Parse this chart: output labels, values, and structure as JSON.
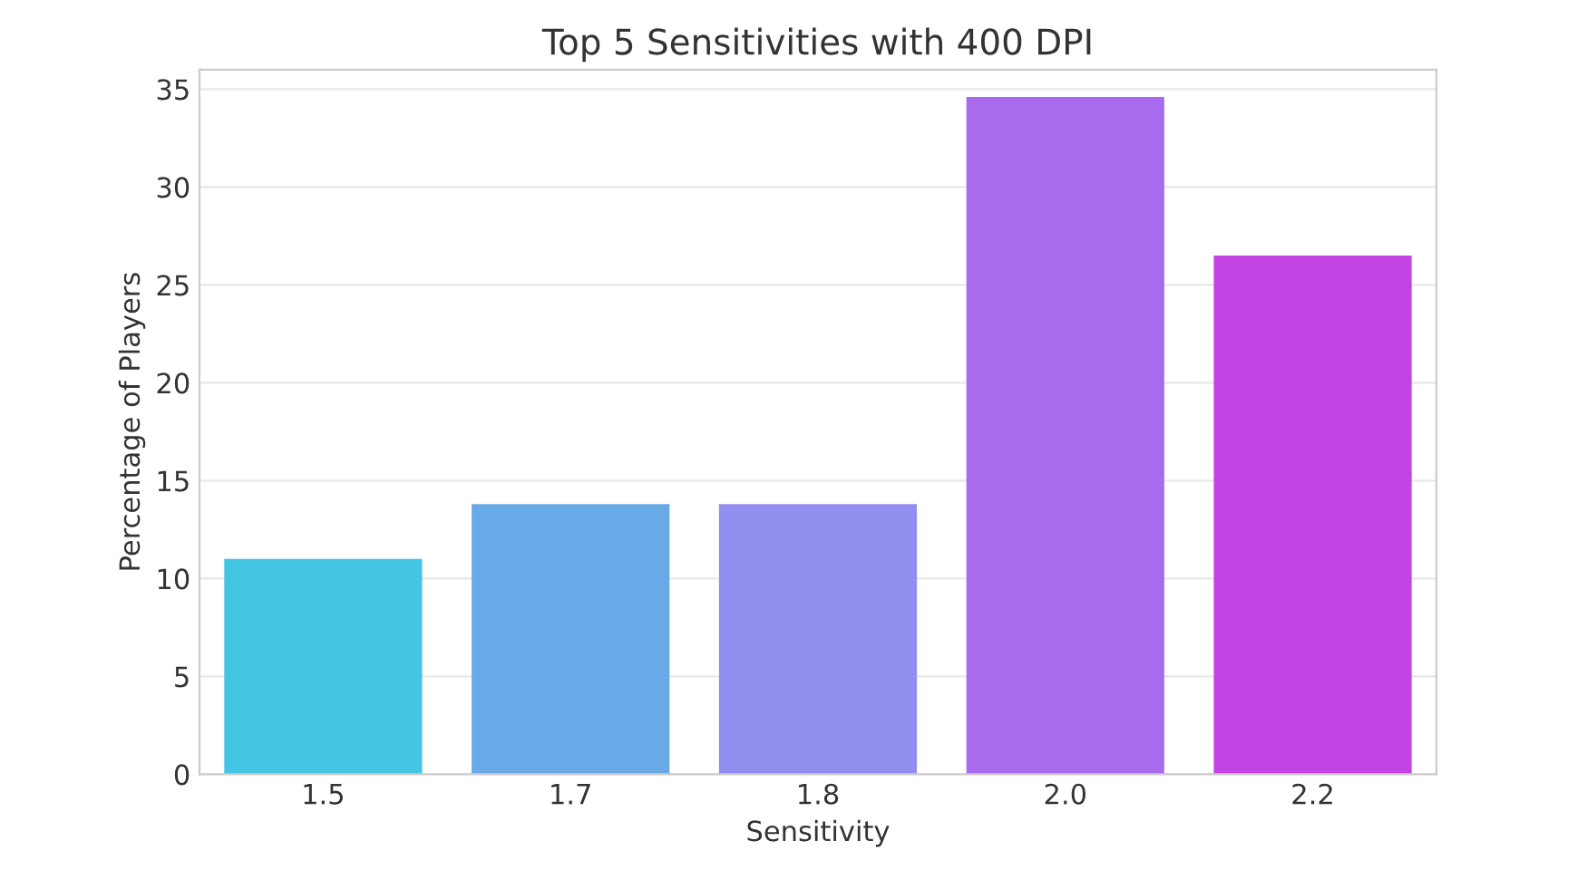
{
  "chart_data": {
    "type": "bar",
    "title": "Top 5 Sensitivities with 400 DPI",
    "xlabel": "Sensitivity",
    "ylabel": "Percentage of Players",
    "categories": [
      "1.5",
      "1.7",
      "1.8",
      "2.0",
      "2.2"
    ],
    "values": [
      11.0,
      13.8,
      13.8,
      34.6,
      26.5
    ],
    "colors": [
      "#42c6e3",
      "#68aae8",
      "#928ef0",
      "#a96bee",
      "#c244e3"
    ],
    "ylim": [
      0,
      36
    ],
    "yticks": [
      0,
      5,
      10,
      15,
      20,
      25,
      30,
      35
    ],
    "grid": "y"
  }
}
